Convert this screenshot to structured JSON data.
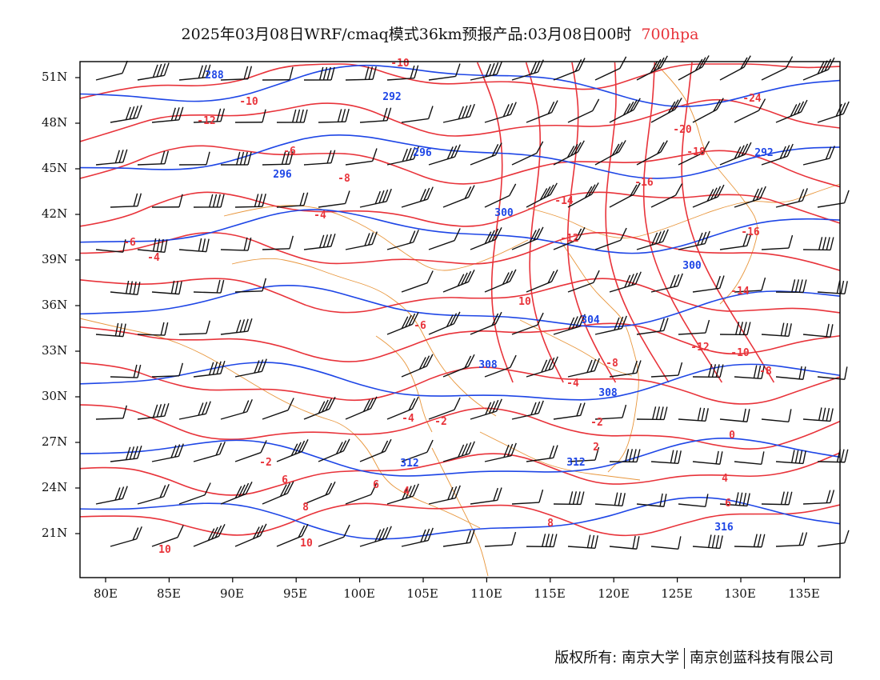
{
  "title": {
    "main": "2025年03月08日WRF/cmaq模式36km预报产品:03月08日00时",
    "level": "700hpa",
    "level_color": "#e8333a"
  },
  "axes": {
    "lat_labels": [
      "51N",
      "48N",
      "45N",
      "42N",
      "39N",
      "36N",
      "33N",
      "30N",
      "27N",
      "24N",
      "21N"
    ],
    "lon_labels": [
      "80E",
      "85E",
      "90E",
      "95E",
      "100E",
      "105E",
      "110E",
      "115E",
      "120E",
      "125E",
      "130E",
      "135E"
    ]
  },
  "contours": {
    "height_color": "#1e46e6",
    "temperature_color": "#e8333a",
    "border_color": "#e8963c",
    "height_labels": [
      "288",
      "292",
      "296",
      "300",
      "304",
      "308",
      "312",
      "316"
    ],
    "temperature_labels": [
      "-24",
      "-20",
      "-18",
      "-16",
      "-14",
      "-12",
      "-10",
      "-8",
      "-6",
      "-4",
      "-2",
      "0",
      "2",
      "4",
      "6",
      "8",
      "10"
    ]
  },
  "copyright": {
    "owner1": "版权所有: 南京大学",
    "owner2": "南京创蓝科技有限公司"
  }
}
